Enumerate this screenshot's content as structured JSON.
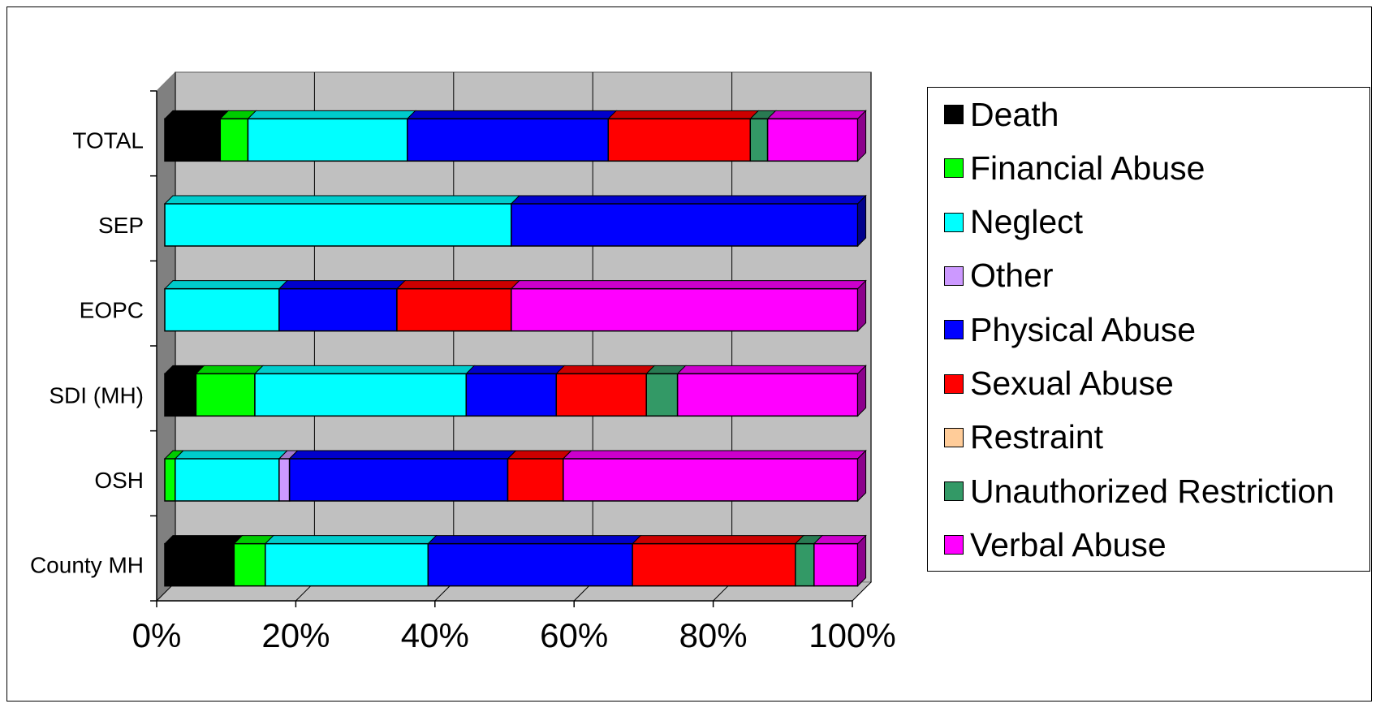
{
  "chart_data": {
    "type": "bar",
    "orientation": "horizontal",
    "stacked": "percent",
    "three_d": true,
    "categories": [
      "County MH",
      "OSH",
      "SDI (MH)",
      "EOPC",
      "SEP",
      "TOTAL"
    ],
    "series": [
      {
        "name": "Death",
        "color": "#000000",
        "values": [
          10,
          0,
          4.5,
          0,
          0,
          8
        ]
      },
      {
        "name": "Financial Abuse",
        "color": "#00ff00",
        "values": [
          4.5,
          1.5,
          8.5,
          0,
          0,
          4
        ]
      },
      {
        "name": "Neglect",
        "color": "#00ffff",
        "values": [
          23.5,
          15,
          30.5,
          16.5,
          50,
          23
        ]
      },
      {
        "name": "Other",
        "color": "#cc99ff",
        "values": [
          0,
          1.5,
          0,
          0,
          0,
          0
        ]
      },
      {
        "name": "Physical Abuse",
        "color": "#0000ff",
        "values": [
          29.5,
          31.5,
          13,
          17,
          50,
          29
        ]
      },
      {
        "name": "Sexual Abuse",
        "color": "#ff0000",
        "values": [
          23.5,
          8,
          13,
          16.5,
          0,
          20.5
        ]
      },
      {
        "name": "Restraint",
        "color": "#ffcc99",
        "values": [
          0,
          0,
          0,
          0,
          0,
          0
        ]
      },
      {
        "name": "Unauthorized Restriction",
        "color": "#339966",
        "values": [
          2.7,
          0,
          4.5,
          0,
          0,
          2.5
        ]
      },
      {
        "name": "Verbal Abuse",
        "color": "#ff00ff",
        "values": [
          6.3,
          42.5,
          26,
          50,
          0,
          13
        ]
      }
    ],
    "xlim": [
      0,
      100
    ],
    "xticks": [
      "0%",
      "20%",
      "40%",
      "60%",
      "80%",
      "100%"
    ],
    "grid": true,
    "legend_position": "right",
    "title": "",
    "xlabel": "",
    "ylabel": ""
  },
  "colors": {
    "wall": "#c0c0c0",
    "floor": "#c0c0c0",
    "side_wall": "#808080"
  }
}
